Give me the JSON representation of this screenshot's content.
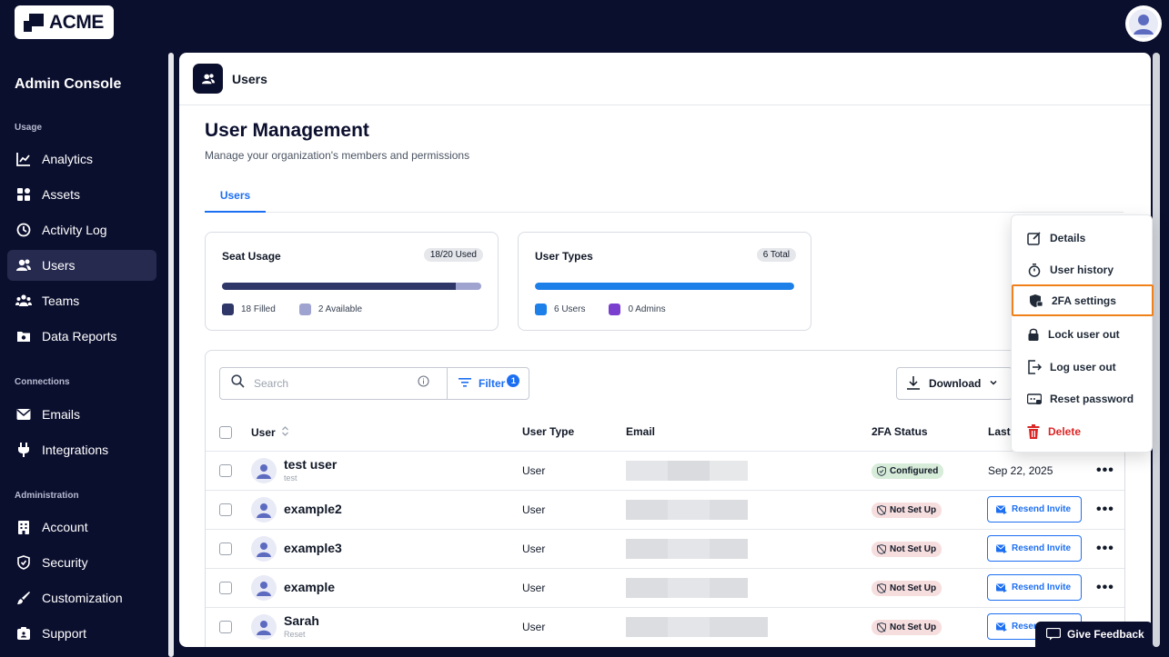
{
  "app": {
    "logo_text": "ACME"
  },
  "sidebar": {
    "title": "Admin Console",
    "sections": {
      "usage": "Usage",
      "connections": "Connections",
      "administration": "Administration"
    },
    "items": [
      {
        "label": "Analytics",
        "icon": "chart-line-icon"
      },
      {
        "label": "Assets",
        "icon": "grid-icon"
      },
      {
        "label": "Activity Log",
        "icon": "history-icon"
      },
      {
        "label": "Users",
        "icon": "users-icon",
        "active": true
      },
      {
        "label": "Teams",
        "icon": "teams-icon"
      },
      {
        "label": "Data Reports",
        "icon": "folder-icon"
      },
      {
        "label": "Emails",
        "icon": "mail-icon"
      },
      {
        "label": "Integrations",
        "icon": "plug-icon"
      },
      {
        "label": "Account",
        "icon": "building-icon"
      },
      {
        "label": "Security",
        "icon": "shield-icon"
      },
      {
        "label": "Customization",
        "icon": "brush-icon"
      },
      {
        "label": "Support",
        "icon": "support-icon"
      }
    ]
  },
  "header": {
    "title": "Users"
  },
  "page": {
    "title": "User Management",
    "subtitle": "Manage your organization's members and permissions",
    "tabs": [
      {
        "label": "Users",
        "active": true
      }
    ]
  },
  "cards": {
    "seat_usage": {
      "title": "Seat Usage",
      "badge": "18/20 Used",
      "filled_fraction": 0.9,
      "legend_filled": "18 Filled",
      "legend_available": "2 Available",
      "color_filled": "#2f3768",
      "color_available": "#9ea3cf"
    },
    "user_types": {
      "title": "User Types",
      "badge": "6 Total",
      "users_fraction": 1.0,
      "legend_users": "6 Users",
      "legend_admins": "0 Admins",
      "color_users": "#1d7fe8",
      "color_admins": "#7b3fd0"
    }
  },
  "toolbar": {
    "search_placeholder": "Search",
    "filter_label": "Filter",
    "filter_count": "1",
    "download_label": "Download"
  },
  "table": {
    "columns": {
      "user": "User",
      "type": "User Type",
      "email": "Email",
      "twofa": "2FA Status",
      "last": "Last"
    },
    "rows": [
      {
        "name": "test user",
        "sub": "test",
        "type": "User",
        "status": "Configured",
        "last": "Sep 22, 2025",
        "action": ""
      },
      {
        "name": "example2",
        "sub": "",
        "type": "User",
        "status": "Not Set Up",
        "last": "",
        "action": "Resend Invite"
      },
      {
        "name": "example3",
        "sub": "",
        "type": "User",
        "status": "Not Set Up",
        "last": "",
        "action": "Resend Invite"
      },
      {
        "name": "example",
        "sub": "",
        "type": "User",
        "status": "Not Set Up",
        "last": "",
        "action": "Resend Invite"
      },
      {
        "name": "Sarah",
        "sub": "Reset",
        "type": "User",
        "status": "Not Set Up",
        "last": "",
        "action": "Resend Invite"
      }
    ]
  },
  "menu": {
    "items": [
      {
        "label": "Details",
        "icon": "edit-icon"
      },
      {
        "label": "User history",
        "icon": "stopwatch-icon"
      },
      {
        "label": "2FA settings",
        "icon": "shield-lock-icon",
        "highlight": true
      },
      {
        "label": "Lock user out",
        "icon": "lock-icon"
      },
      {
        "label": "Log user out",
        "icon": "logout-icon"
      },
      {
        "label": "Reset password",
        "icon": "key-card-icon"
      },
      {
        "label": "Delete",
        "icon": "trash-icon",
        "danger": true
      }
    ]
  },
  "feedback": {
    "label": "Give Feedback"
  },
  "colors": {
    "brand_dark": "#0b0f2e",
    "accent": "#1d6ff2",
    "highlight_border": "#f08019"
  }
}
